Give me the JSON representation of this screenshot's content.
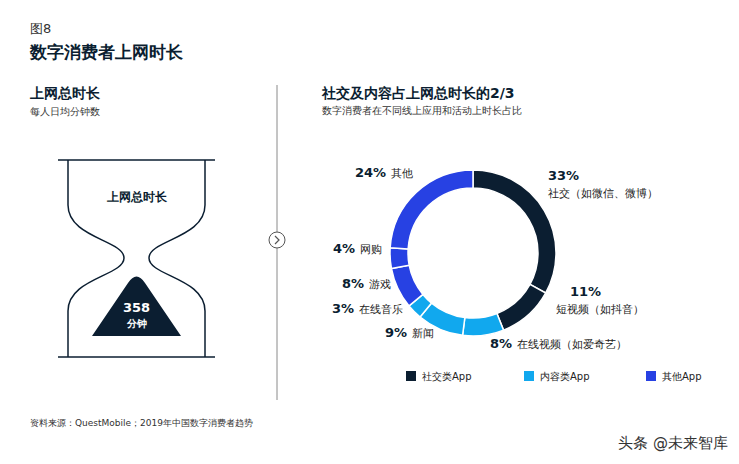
{
  "figure_label": "图8",
  "title": "数字消费者上网时长",
  "left_panel": {
    "title": "上网总时长",
    "subtitle": "每人日均分钟数",
    "hourglass_label": "上网总时长",
    "value": 358,
    "unit": "分钟"
  },
  "chart_data": {
    "type": "pie",
    "title": "社交及内容占上网总时长的2/3",
    "subtitle": "数字消费者在不同线上应用和活动上时长占比",
    "categories": [
      "社交（如微信、微博）",
      "短视频（如抖音）",
      "在线视频（如爱奇艺）",
      "新闻",
      "在线音乐",
      "游戏",
      "网购",
      "其他"
    ],
    "values": [
      33,
      11,
      8,
      9,
      3,
      8,
      4,
      24
    ],
    "value_labels": [
      "33%",
      "11%",
      "8%",
      "9%",
      "3%",
      "8%",
      "4%",
      "24%"
    ],
    "colors": [
      "#0b1e31",
      "#0b1e31",
      "#11a8ee",
      "#11a8ee",
      "#11a8ee",
      "#2741e3",
      "#2741e3",
      "#2741e3"
    ],
    "data_labels": true,
    "legend": "bottom",
    "legend_entries": [
      {
        "name": "社交类App",
        "color": "#0b1e31"
      },
      {
        "name": "内容类App",
        "color": "#11a8ee"
      },
      {
        "name": "其他App",
        "color": "#2741e3"
      }
    ]
  },
  "source": "资料来源：QuestMobile；2019年中国数字消费者趋势",
  "watermark": "头条 @未来智库"
}
